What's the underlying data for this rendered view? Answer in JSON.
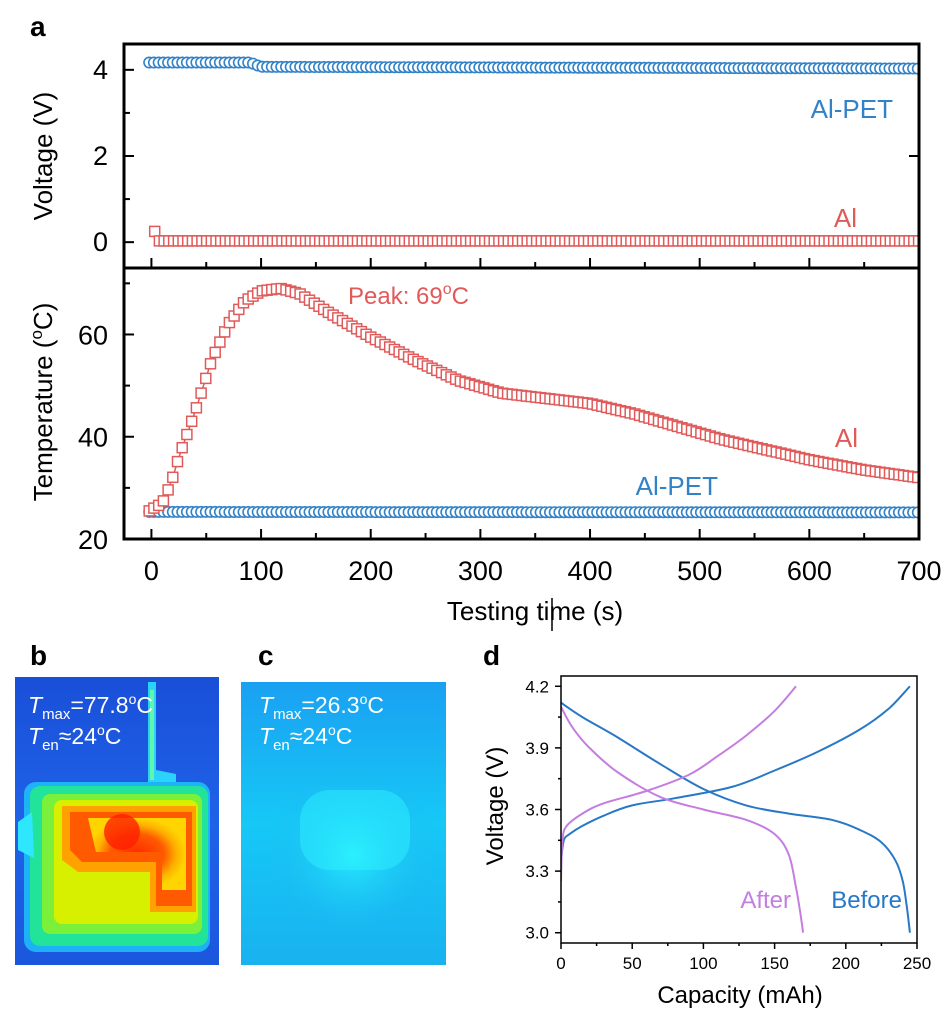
{
  "colors": {
    "blue": "#3282c8",
    "red": "#e05a5a",
    "purple": "#c47ee0",
    "curve_blue": "#2878c8",
    "axis": "#000000"
  },
  "panel_labels": {
    "a": "a",
    "b": "b",
    "c": "c",
    "d": "d"
  },
  "chart_data": [
    {
      "id": "a-voltage",
      "type": "scatter",
      "ylabel": "Voltage (V)",
      "xlim": [
        0,
        700
      ],
      "ylim": [
        -0.6,
        4.6
      ],
      "yticks": [
        0,
        2,
        4
      ],
      "yticklabels": [
        "0",
        "2",
        "4"
      ],
      "series": [
        {
          "name": "Al-PET",
          "label": "Al-PET",
          "color": "#3282c8",
          "marker": "circle",
          "x_start": -2,
          "x_end": 700,
          "step": 4.3,
          "profile": [
            [
              0,
              4.17
            ],
            [
              90,
              4.17
            ],
            [
              100,
              4.07
            ],
            [
              700,
              4.03
            ]
          ]
        },
        {
          "name": "Al",
          "label": "Al",
          "color": "#e05a5a",
          "marker": "square",
          "x_start": 3,
          "x_end": 700,
          "step": 4.3,
          "profile": [
            [
              -1,
              4.15
            ],
            [
              3,
              0.25
            ],
            [
              6,
              0.03
            ],
            [
              700,
              0.03
            ]
          ]
        }
      ]
    },
    {
      "id": "a-temperature",
      "type": "scatter",
      "ylabel": "Temperature (oC)",
      "xlabel": "Testing time (s)",
      "xlim": [
        -25,
        700
      ],
      "ylim": [
        20,
        73
      ],
      "xticks": [
        0,
        100,
        200,
        300,
        400,
        500,
        600,
        700
      ],
      "xticklabels": [
        "0",
        "100",
        "200",
        "300",
        "400",
        "500",
        "600",
        "700"
      ],
      "yticks": [
        20,
        40,
        60
      ],
      "yticklabels": [
        "20",
        "40",
        "60"
      ],
      "annotation": "Peak: 69oC",
      "series": [
        {
          "name": "Al",
          "label": "Al",
          "color": "#e05a5a",
          "marker": "square",
          "x_start": -2,
          "x_end": 700,
          "step": 4.3,
          "profile": [
            [
              -2,
              25.5
            ],
            [
              10,
              27
            ],
            [
              18,
              31
            ],
            [
              25,
              36
            ],
            [
              40,
              45
            ],
            [
              55,
              55
            ],
            [
              70,
              62
            ],
            [
              85,
              66.5
            ],
            [
              100,
              68.5
            ],
            [
              118,
              69
            ],
            [
              135,
              68
            ],
            [
              160,
              64.5
            ],
            [
              200,
              59.5
            ],
            [
              240,
              55
            ],
            [
              280,
              51
            ],
            [
              320,
              48.5
            ],
            [
              360,
              47.5
            ],
            [
              400,
              46.5
            ],
            [
              440,
              44.5
            ],
            [
              480,
              42
            ],
            [
              520,
              39.5
            ],
            [
              560,
              37.5
            ],
            [
              600,
              35.5
            ],
            [
              650,
              33.5
            ],
            [
              700,
              32
            ]
          ]
        },
        {
          "name": "Al-PET",
          "label": "Al-PET",
          "color": "#3282c8",
          "marker": "circle",
          "x_start": -2,
          "x_end": 700,
          "step": 4.3,
          "profile": [
            [
              -2,
              25.3
            ],
            [
              700,
              25.2
            ]
          ]
        }
      ]
    },
    {
      "id": "d-capacity",
      "type": "line",
      "xlabel": "Capacity (mAh)",
      "ylabel": "Voltage (V)",
      "xlim": [
        0,
        250
      ],
      "ylim": [
        2.95,
        4.25
      ],
      "xticks": [
        0,
        50,
        100,
        150,
        200,
        250
      ],
      "xticklabels": [
        "0",
        "50",
        "100",
        "150",
        "200",
        "250"
      ],
      "yticks": [
        3.0,
        3.3,
        3.6,
        3.9,
        4.2
      ],
      "yticklabels": [
        "3.0",
        "3.3",
        "3.6",
        "3.9",
        "4.2"
      ],
      "series": [
        {
          "name": "Before",
          "label": "Before",
          "color": "#2878c8",
          "charge": [
            [
              0,
              3.35
            ],
            [
              2,
              3.45
            ],
            [
              6,
              3.48
            ],
            [
              15,
              3.52
            ],
            [
              30,
              3.57
            ],
            [
              50,
              3.62
            ],
            [
              80,
              3.655
            ],
            [
              120,
              3.71
            ],
            [
              150,
              3.79
            ],
            [
              180,
              3.88
            ],
            [
              210,
              3.99
            ],
            [
              230,
              4.09
            ],
            [
              245,
              4.2
            ]
          ],
          "discharge": [
            [
              0,
              4.12
            ],
            [
              15,
              4.05
            ],
            [
              40,
              3.95
            ],
            [
              70,
              3.82
            ],
            [
              100,
              3.7
            ],
            [
              130,
              3.62
            ],
            [
              160,
              3.58
            ],
            [
              190,
              3.55
            ],
            [
              210,
              3.5
            ],
            [
              225,
              3.44
            ],
            [
              235,
              3.35
            ],
            [
              240,
              3.25
            ],
            [
              243,
              3.12
            ],
            [
              245,
              3.0
            ]
          ]
        },
        {
          "name": "After",
          "label": "After",
          "color": "#c47ee0",
          "charge": [
            [
              0,
              3.25
            ],
            [
              1,
              3.45
            ],
            [
              4,
              3.52
            ],
            [
              15,
              3.58
            ],
            [
              30,
              3.63
            ],
            [
              60,
              3.69
            ],
            [
              90,
              3.77
            ],
            [
              110,
              3.86
            ],
            [
              130,
              3.96
            ],
            [
              150,
              4.08
            ],
            [
              165,
              4.2
            ]
          ],
          "discharge": [
            [
              0,
              4.1
            ],
            [
              8,
              4.0
            ],
            [
              20,
              3.9
            ],
            [
              40,
              3.78
            ],
            [
              70,
              3.66
            ],
            [
              100,
              3.6
            ],
            [
              130,
              3.55
            ],
            [
              150,
              3.48
            ],
            [
              160,
              3.38
            ],
            [
              165,
              3.22
            ],
            [
              168,
              3.1
            ],
            [
              170,
              3.0
            ]
          ]
        }
      ]
    }
  ],
  "thermal": {
    "b": {
      "t_symbol": "T",
      "t_max_sub": "max",
      "t_max_value": "=77.8",
      "t_en_sub": "en",
      "t_en_value": "≈24",
      "deg_sup": "o",
      "unit": "C"
    },
    "c": {
      "t_symbol": "T",
      "t_max_sub": "max",
      "t_max_value": "=26.3",
      "t_en_sub": "en",
      "t_en_value": "≈24",
      "deg_sup": "o",
      "unit": "C"
    }
  }
}
